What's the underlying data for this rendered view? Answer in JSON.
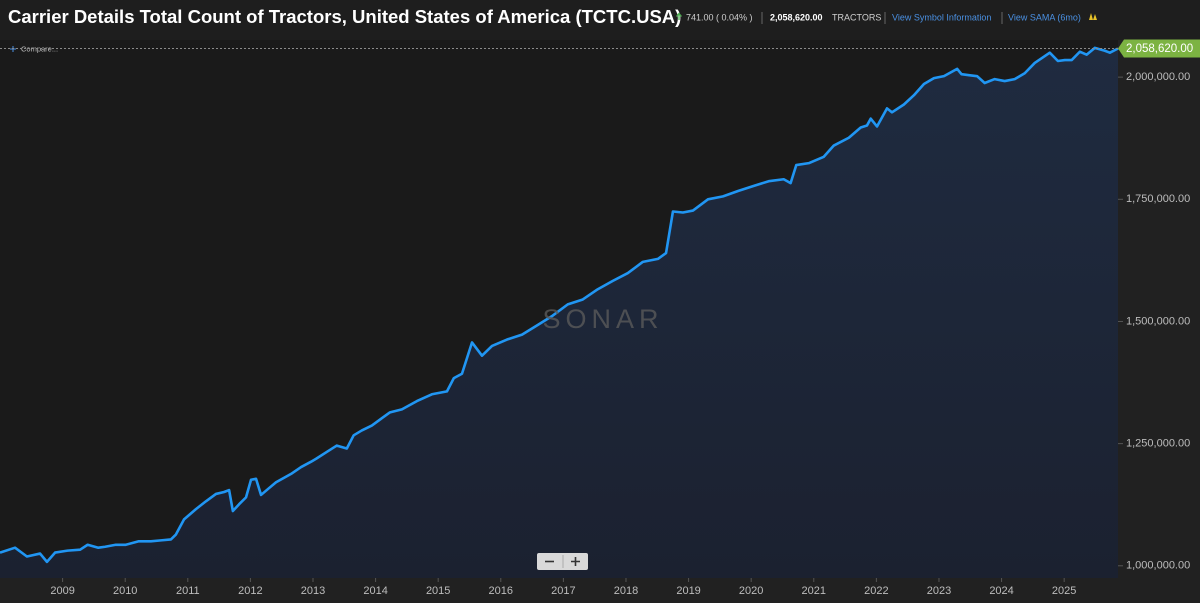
{
  "ui": {
    "compare": "Compare...",
    "change": "741.00 ( 0.04% )",
    "last_price": "2,058,620.00",
    "unit": "TRACTORS",
    "symbol_link": "View Symbol Information",
    "sama_link": "View SAMA (6mo)",
    "watermark": "SONAR"
  },
  "chart_data": {
    "type": "line",
    "title": "Carrier Details Total Count of Tractors, United States of America (TCTC.USA)",
    "color": "#2196f3",
    "x": [
      2008.0,
      2008.24,
      2008.43,
      2008.64,
      2008.75,
      2008.88,
      2009.08,
      2009.28,
      2009.4,
      2009.57,
      2009.68,
      2009.85,
      2010.01,
      2010.21,
      2010.41,
      2010.57,
      2010.73,
      2010.81,
      2010.94,
      2011.13,
      2011.29,
      2011.45,
      2011.58,
      2011.66,
      2011.72,
      2011.82,
      2011.93,
      2012.01,
      2012.09,
      2012.17,
      2012.28,
      2012.41,
      2012.65,
      2012.81,
      2012.97,
      2013.05,
      2013.22,
      2013.38,
      2013.54,
      2013.65,
      2013.78,
      2013.94,
      2014.1,
      2014.23,
      2014.42,
      2014.66,
      2014.9,
      2015.14,
      2015.25,
      2015.38,
      2015.54,
      2015.7,
      2015.86,
      2016.1,
      2016.34,
      2016.58,
      2016.83,
      2017.07,
      2017.31,
      2017.55,
      2017.79,
      2018.03,
      2018.27,
      2018.51,
      2018.64,
      2018.75,
      2018.91,
      2019.07,
      2019.31,
      2019.55,
      2019.79,
      2020.03,
      2020.28,
      2020.52,
      2020.63,
      2020.72,
      2020.92,
      2021.16,
      2021.32,
      2021.56,
      2021.75,
      2021.85,
      2021.91,
      2022.01,
      2022.17,
      2022.25,
      2022.44,
      2022.6,
      2022.76,
      2022.92,
      2023.08,
      2023.29,
      2023.36,
      2023.48,
      2023.61,
      2023.73,
      2023.89,
      2024.05,
      2024.21,
      2024.37,
      2024.53,
      2024.77,
      2024.9,
      2025.01,
      2025.12,
      2025.25,
      2025.36,
      2025.49,
      2025.65,
      2025.73,
      2025.86
    ],
    "values": [
      1027000,
      1037000,
      1019000,
      1025000,
      1008000,
      1027000,
      1031000,
      1033000,
      1043000,
      1037000,
      1039000,
      1043000,
      1043000,
      1050000,
      1050000,
      1052000,
      1054000,
      1064000,
      1095000,
      1116000,
      1132000,
      1147000,
      1151000,
      1155000,
      1112000,
      1126000,
      1140000,
      1176000,
      1178000,
      1145000,
      1157000,
      1171000,
      1188000,
      1202000,
      1213000,
      1219000,
      1233000,
      1246000,
      1240000,
      1267000,
      1277000,
      1287000,
      1302000,
      1314000,
      1320000,
      1337000,
      1351000,
      1357000,
      1384000,
      1393000,
      1457000,
      1430000,
      1450000,
      1463000,
      1473000,
      1492000,
      1512000,
      1535000,
      1545000,
      1566000,
      1583000,
      1599000,
      1622000,
      1628000,
      1640000,
      1725000,
      1723000,
      1727000,
      1750000,
      1756000,
      1767000,
      1777000,
      1787000,
      1791000,
      1783000,
      1820000,
      1824000,
      1837000,
      1860000,
      1876000,
      1897000,
      1901000,
      1915000,
      1899000,
      1936000,
      1928000,
      1944000,
      1963000,
      1986000,
      1998000,
      2002000,
      2017000,
      2006000,
      2004000,
      2002000,
      1988000,
      1996000,
      1992000,
      1996000,
      2008000,
      2029000,
      2050000,
      2033000,
      2035000,
      2035000,
      2052000,
      2046000,
      2060000,
      2054000,
      2050000,
      2058620
    ],
    "last_label": {
      "value": 2058620,
      "label": "2,058,620.00"
    },
    "xlim": [
      2008.0,
      2025.86
    ],
    "xticks": [
      2009,
      2010,
      2011,
      2012,
      2013,
      2014,
      2015,
      2016,
      2017,
      2018,
      2019,
      2020,
      2021,
      2022,
      2023,
      2024,
      2025
    ],
    "ylim": [
      975000,
      2076000
    ],
    "yticks": [
      {
        "value": 1000000,
        "label": "1,000,000.00"
      },
      {
        "value": 1250000,
        "label": "1,250,000.00"
      },
      {
        "value": 1500000,
        "label": "1,500,000.00"
      },
      {
        "value": 1750000,
        "label": "1,750,000.00"
      },
      {
        "value": 2000000,
        "label": "2,000,000.00"
      }
    ],
    "grid": false
  }
}
